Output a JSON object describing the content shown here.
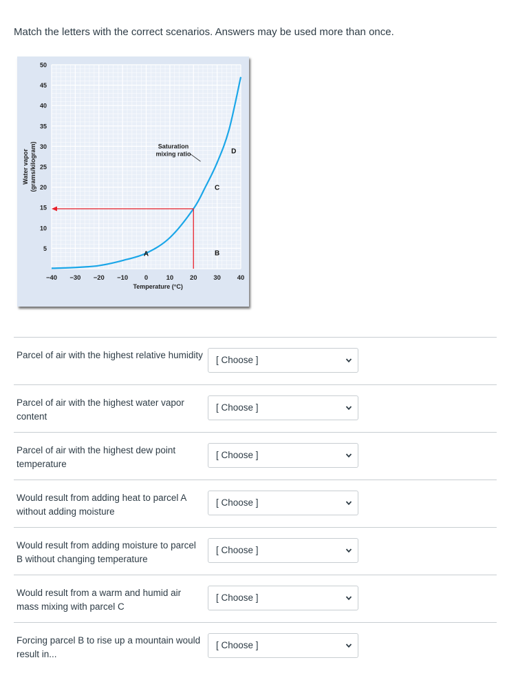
{
  "prompt": "Match the letters with the correct scenarios. Answers may be used more than once.",
  "chart_data": {
    "type": "line",
    "title": "",
    "xlabel": "Temperature (°C)",
    "ylabel": "Water vapor (grams/kilogram)",
    "xlim": [
      -40,
      40
    ],
    "ylim": [
      0,
      50
    ],
    "x_ticks": [
      -40,
      -30,
      -20,
      -10,
      0,
      10,
      20,
      30,
      40
    ],
    "y_ticks": [
      50,
      45,
      40,
      35,
      30,
      25,
      20,
      15,
      10,
      5
    ],
    "grid": true,
    "series": [
      {
        "name": "Saturation mixing ratio",
        "x": [
          -40,
          -30,
          -20,
          -10,
          0,
          10,
          20,
          25,
          30,
          35,
          40
        ],
        "y": [
          0.1,
          0.3,
          0.75,
          2.0,
          3.8,
          7.6,
          14.7,
          20.0,
          26.0,
          34.0,
          47.0
        ]
      }
    ],
    "reference_point": {
      "x": 20,
      "y": 14.7
    },
    "points": [
      {
        "label": "A",
        "x": 0,
        "y": 3.8
      },
      {
        "label": "B",
        "x": 30,
        "y": 4.0
      },
      {
        "label": "C",
        "x": 30,
        "y": 20.0
      },
      {
        "label": "D",
        "x": 37,
        "y": 29.0
      }
    ],
    "annotation": "Saturation mixing ratio",
    "colors": {
      "curve": "#1aa6e8",
      "reference": "#e8202a",
      "background": "#dde6f3",
      "grid": "#ffffff"
    }
  },
  "questions": [
    {
      "text": "Parcel of air with the highest relative humidity",
      "selected": "[ Choose ]"
    },
    {
      "text": "Parcel of air with the highest water vapor content",
      "selected": "[ Choose ]"
    },
    {
      "text": "Parcel of air with the highest dew point temperature",
      "selected": "[ Choose ]"
    },
    {
      "text": "Would result from adding heat to parcel A without adding moisture",
      "selected": "[ Choose ]"
    },
    {
      "text": "Would result from adding moisture to parcel B without changing temperature",
      "selected": "[ Choose ]"
    },
    {
      "text": "Would result from a warm and humid air mass mixing with parcel C",
      "selected": "[ Choose ]"
    },
    {
      "text": "Forcing parcel B to rise up a mountain would result in...",
      "selected": "[ Choose ]"
    }
  ]
}
